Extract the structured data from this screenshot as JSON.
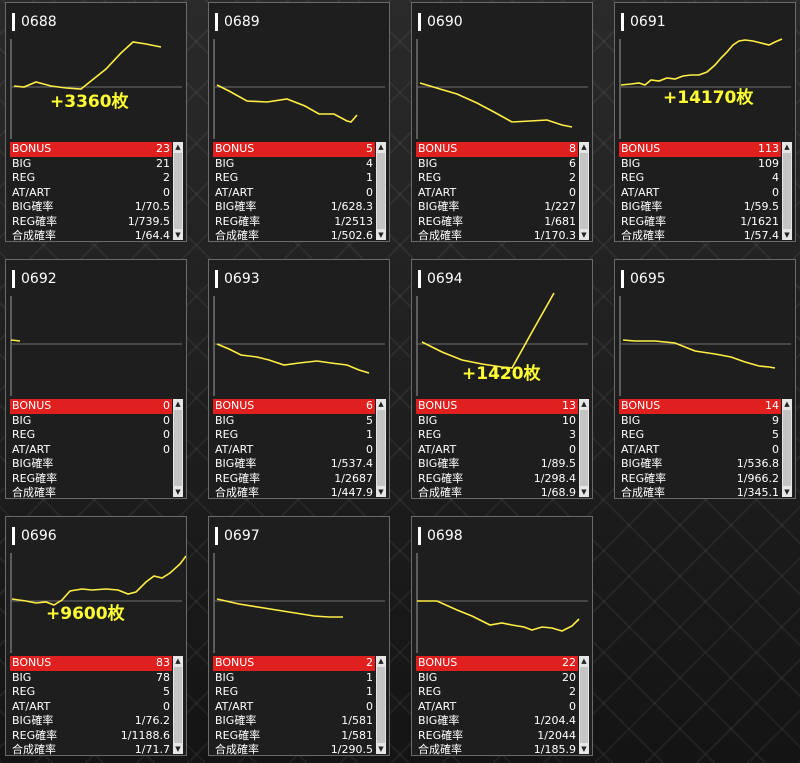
{
  "machines": [
    {
      "id": "0688",
      "diff": "+3360枚",
      "bonus": "23",
      "big": "21",
      "reg": "2",
      "atart": "0",
      "big_rate": "1/70.5",
      "reg_rate": "1/739.5",
      "total_rate": "1/64.4"
    },
    {
      "id": "0689",
      "diff": "",
      "bonus": "5",
      "big": "4",
      "reg": "1",
      "atart": "0",
      "big_rate": "1/628.3",
      "reg_rate": "1/2513",
      "total_rate": "1/502.6"
    },
    {
      "id": "0690",
      "diff": "",
      "bonus": "8",
      "big": "6",
      "reg": "2",
      "atart": "0",
      "big_rate": "1/227",
      "reg_rate": "1/681",
      "total_rate": "1/170.3"
    },
    {
      "id": "0691",
      "diff": "+14170枚",
      "bonus": "113",
      "big": "109",
      "reg": "4",
      "atart": "0",
      "big_rate": "1/59.5",
      "reg_rate": "1/1621",
      "total_rate": "1/57.4"
    },
    {
      "id": "0692",
      "diff": "",
      "bonus": "0",
      "big": "0",
      "reg": "0",
      "atart": "0",
      "big_rate": "",
      "reg_rate": "",
      "total_rate": ""
    },
    {
      "id": "0693",
      "diff": "",
      "bonus": "6",
      "big": "5",
      "reg": "1",
      "atart": "0",
      "big_rate": "1/537.4",
      "reg_rate": "1/2687",
      "total_rate": "1/447.9"
    },
    {
      "id": "0694",
      "diff": "+1420枚",
      "bonus": "13",
      "big": "10",
      "reg": "3",
      "atart": "0",
      "big_rate": "1/89.5",
      "reg_rate": "1/298.4",
      "total_rate": "1/68.9"
    },
    {
      "id": "0695",
      "diff": "",
      "bonus": "14",
      "big": "9",
      "reg": "5",
      "atart": "0",
      "big_rate": "1/536.8",
      "reg_rate": "1/966.2",
      "total_rate": "1/345.1"
    },
    {
      "id": "0696",
      "diff": "+9600枚",
      "bonus": "83",
      "big": "78",
      "reg": "5",
      "atart": "0",
      "big_rate": "1/76.2",
      "reg_rate": "1/1188.6",
      "total_rate": "1/71.7"
    },
    {
      "id": "0697",
      "diff": "",
      "bonus": "2",
      "big": "1",
      "reg": "1",
      "atart": "0",
      "big_rate": "1/581",
      "reg_rate": "1/581",
      "total_rate": "1/290.5"
    },
    {
      "id": "0698",
      "diff": "",
      "bonus": "22",
      "big": "20",
      "reg": "2",
      "atart": "0",
      "big_rate": "1/204.4",
      "reg_rate": "1/2044",
      "total_rate": "1/185.9"
    }
  ],
  "labels": {
    "bonus": "BONUS",
    "big": "BIG",
    "reg": "REG",
    "atart": "AT/ART",
    "big_rate": "BIG確率",
    "reg_rate": "REG確率",
    "total_rate": "合成確率"
  },
  "colors": {
    "line": "#ffee44",
    "bonus_row": "#e0201e",
    "diff_text": "#ffff33"
  }
}
